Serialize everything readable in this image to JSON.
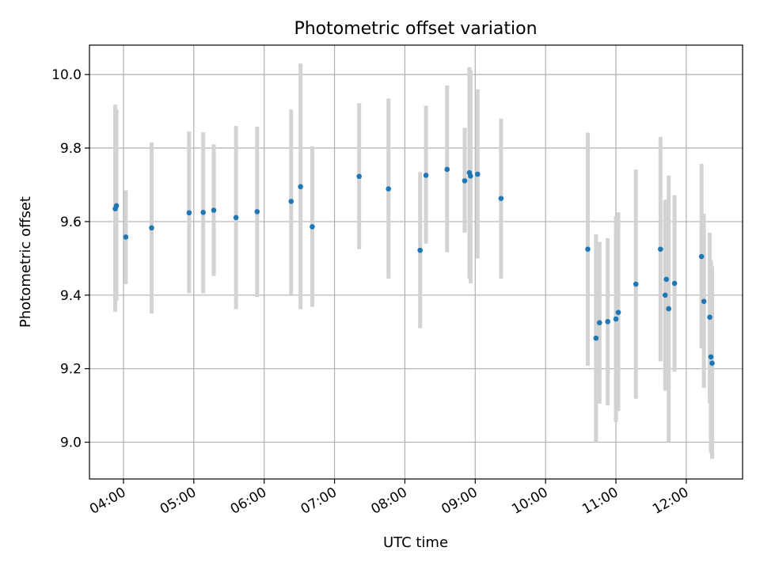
{
  "chart_data": {
    "type": "scatter",
    "title": "Photometric offset variation",
    "xlabel": "UTC time",
    "ylabel": "Photometric offset",
    "xlim": [
      "03:31",
      "12:48"
    ],
    "ylim": [
      8.9,
      10.08
    ],
    "x_ticks": [
      "04:00",
      "05:00",
      "06:00",
      "07:00",
      "08:00",
      "09:00",
      "10:00",
      "11:00",
      "12:00"
    ],
    "y_ticks": [
      9.0,
      9.2,
      9.4,
      9.6,
      9.8,
      10.0
    ],
    "y_tick_labels": [
      "9.0",
      "9.2",
      "9.4",
      "9.6",
      "9.8",
      "10.0"
    ],
    "grid": true,
    "series": [
      {
        "marker_color": "#1f77b4",
        "errorbar_color": "#d3d3d3",
        "points": [
          {
            "x": "03:53",
            "y": 9.635,
            "ylow": 9.355,
            "yhigh": 9.918
          },
          {
            "x": "03:54",
            "y": 9.643,
            "ylow": 9.385,
            "yhigh": 9.905
          },
          {
            "x": "04:02",
            "y": 9.558,
            "ylow": 9.43,
            "yhigh": 9.685
          },
          {
            "x": "04:24",
            "y": 9.583,
            "ylow": 9.35,
            "yhigh": 9.815
          },
          {
            "x": "04:56",
            "y": 9.624,
            "ylow": 9.405,
            "yhigh": 9.845
          },
          {
            "x": "05:08",
            "y": 9.625,
            "ylow": 9.405,
            "yhigh": 9.843
          },
          {
            "x": "05:17",
            "y": 9.631,
            "ylow": 9.452,
            "yhigh": 9.81
          },
          {
            "x": "05:36",
            "y": 9.611,
            "ylow": 9.362,
            "yhigh": 9.86
          },
          {
            "x": "05:54",
            "y": 9.627,
            "ylow": 9.395,
            "yhigh": 9.858
          },
          {
            "x": "06:23",
            "y": 9.655,
            "ylow": 9.402,
            "yhigh": 9.905
          },
          {
            "x": "06:31",
            "y": 9.695,
            "ylow": 9.362,
            "yhigh": 10.03
          },
          {
            "x": "06:41",
            "y": 9.586,
            "ylow": 9.368,
            "yhigh": 9.805
          },
          {
            "x": "07:21",
            "y": 9.723,
            "ylow": 9.525,
            "yhigh": 9.922
          },
          {
            "x": "07:46",
            "y": 9.689,
            "ylow": 9.445,
            "yhigh": 9.935
          },
          {
            "x": "08:13",
            "y": 9.522,
            "ylow": 9.31,
            "yhigh": 9.735
          },
          {
            "x": "08:18",
            "y": 9.726,
            "ylow": 9.54,
            "yhigh": 9.915
          },
          {
            "x": "08:36",
            "y": 9.742,
            "ylow": 9.517,
            "yhigh": 9.97
          },
          {
            "x": "08:51",
            "y": 9.711,
            "ylow": 9.57,
            "yhigh": 9.855
          },
          {
            "x": "08:55",
            "y": 9.733,
            "ylow": 9.445,
            "yhigh": 10.02
          },
          {
            "x": "08:56",
            "y": 9.724,
            "ylow": 9.432,
            "yhigh": 10.012
          },
          {
            "x": "09:02",
            "y": 9.729,
            "ylow": 9.5,
            "yhigh": 9.96
          },
          {
            "x": "09:22",
            "y": 9.663,
            "ylow": 9.445,
            "yhigh": 9.88
          },
          {
            "x": "10:36",
            "y": 9.525,
            "ylow": 9.208,
            "yhigh": 9.842
          },
          {
            "x": "10:43",
            "y": 9.283,
            "ylow": 9.0,
            "yhigh": 9.565
          },
          {
            "x": "10:46",
            "y": 9.325,
            "ylow": 9.105,
            "yhigh": 9.545
          },
          {
            "x": "10:53",
            "y": 9.328,
            "ylow": 9.1,
            "yhigh": 9.555
          },
          {
            "x": "11:00",
            "y": 9.335,
            "ylow": 9.055,
            "yhigh": 9.615
          },
          {
            "x": "11:02",
            "y": 9.353,
            "ylow": 9.085,
            "yhigh": 9.625
          },
          {
            "x": "11:17",
            "y": 9.43,
            "ylow": 9.118,
            "yhigh": 9.742
          },
          {
            "x": "11:38",
            "y": 9.525,
            "ylow": 9.22,
            "yhigh": 9.83
          },
          {
            "x": "11:42",
            "y": 9.4,
            "ylow": 9.14,
            "yhigh": 9.658
          },
          {
            "x": "11:43",
            "y": 9.443,
            "ylow": 9.225,
            "yhigh": 9.66
          },
          {
            "x": "11:45",
            "y": 9.363,
            "ylow": 9.0,
            "yhigh": 9.725
          },
          {
            "x": "11:50",
            "y": 9.432,
            "ylow": 9.192,
            "yhigh": 9.672
          },
          {
            "x": "12:13",
            "y": 9.505,
            "ylow": 9.255,
            "yhigh": 9.757
          },
          {
            "x": "12:15",
            "y": 9.383,
            "ylow": 9.148,
            "yhigh": 9.622
          },
          {
            "x": "12:20",
            "y": 9.34,
            "ylow": 9.105,
            "yhigh": 9.57
          },
          {
            "x": "12:21",
            "y": 9.232,
            "ylow": 8.97,
            "yhigh": 9.495
          },
          {
            "x": "12:22",
            "y": 9.215,
            "ylow": 8.955,
            "yhigh": 9.478
          }
        ]
      }
    ]
  }
}
